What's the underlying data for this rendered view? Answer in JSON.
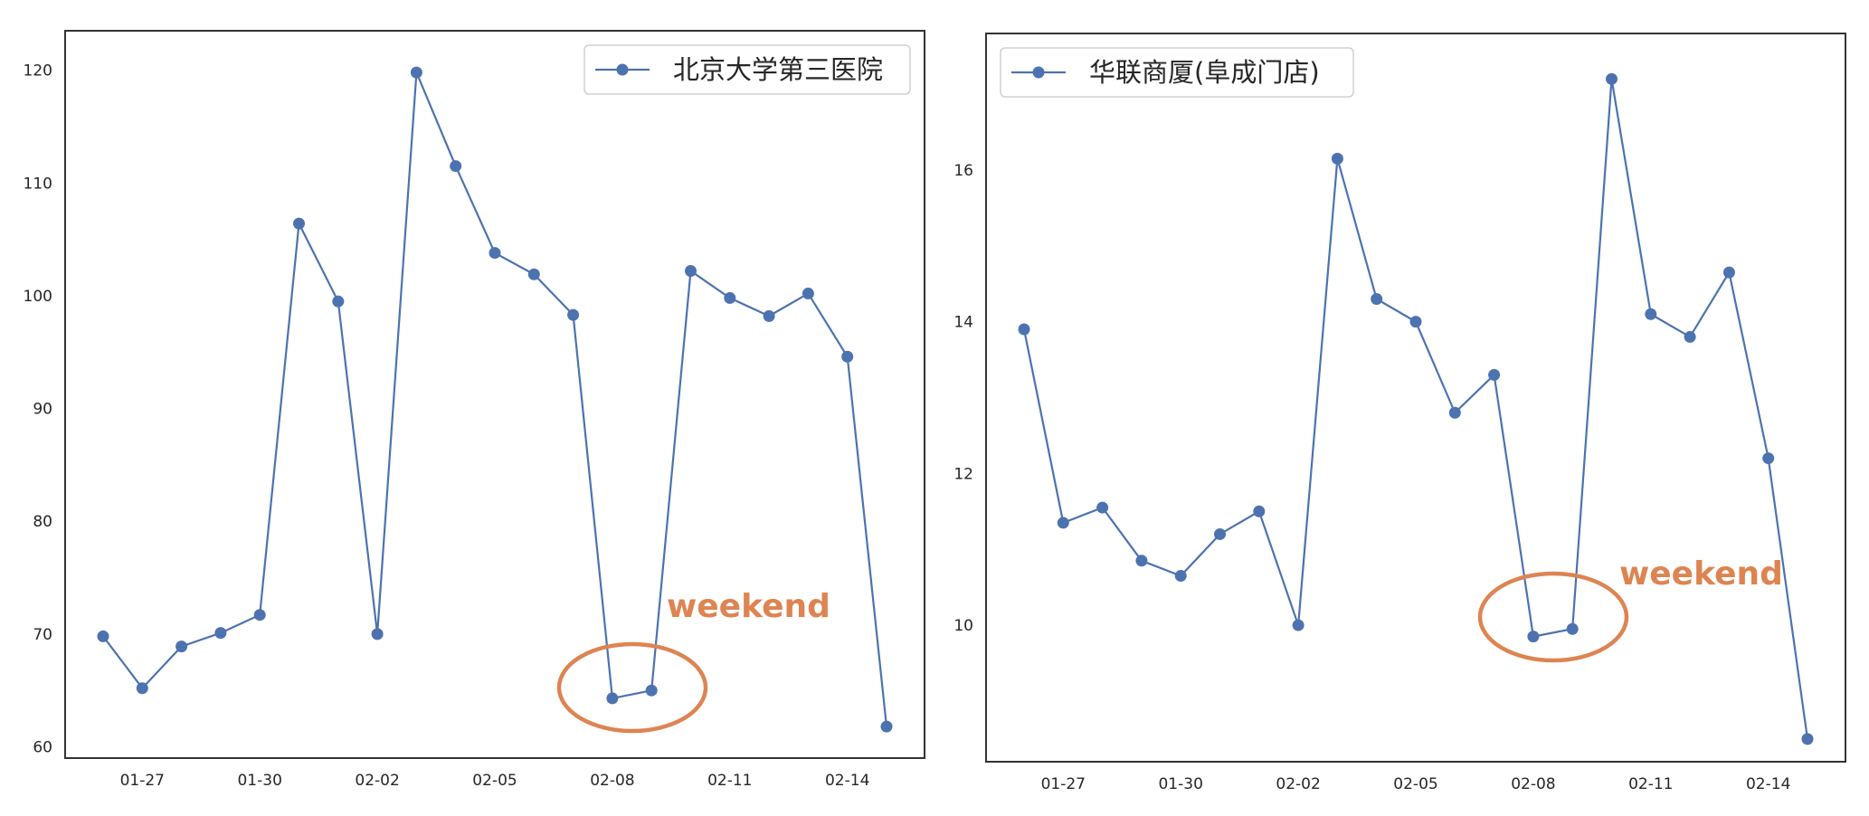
{
  "chart_data": [
    {
      "type": "line",
      "title": "",
      "xlabel": "",
      "ylabel": "",
      "x": [
        "01-26",
        "01-27",
        "01-28",
        "01-29",
        "01-30",
        "01-31",
        "02-01",
        "02-02",
        "02-03",
        "02-04",
        "02-05",
        "02-06",
        "02-07",
        "02-08",
        "02-09",
        "02-10",
        "02-11",
        "02-12",
        "02-13",
        "02-14",
        "02-15"
      ],
      "x_ticks": [
        "01-27",
        "01-30",
        "02-02",
        "02-05",
        "02-08",
        "02-11",
        "02-14"
      ],
      "y_ticks": [
        60,
        70,
        80,
        90,
        100,
        110,
        120
      ],
      "ylim": [
        59,
        123.5
      ],
      "xlim": [
        "01-25",
        "02-15"
      ],
      "grid": false,
      "legend_position": "top-right",
      "series": [
        {
          "name": "北京大学第三医院",
          "color": "#4c72b0",
          "values": [
            69.8,
            65.2,
            68.9,
            70.1,
            71.7,
            106.4,
            99.5,
            70.0,
            119.8,
            111.5,
            103.8,
            101.9,
            98.3,
            64.3,
            65.0,
            102.2,
            99.8,
            98.2,
            100.2,
            94.6,
            61.8
          ]
        }
      ],
      "annotations": [
        {
          "text": "weekend",
          "color": "#dd8452",
          "x_range": [
            "02-08",
            "02-09"
          ]
        }
      ]
    },
    {
      "type": "line",
      "title": "",
      "xlabel": "",
      "ylabel": "",
      "x": [
        "01-26",
        "01-27",
        "01-28",
        "01-29",
        "01-30",
        "01-31",
        "02-01",
        "02-02",
        "02-03",
        "02-04",
        "02-05",
        "02-06",
        "02-07",
        "02-08",
        "02-09",
        "02-10",
        "02-11",
        "02-12",
        "02-13",
        "02-14",
        "02-15"
      ],
      "x_ticks": [
        "01-27",
        "01-30",
        "02-02",
        "02-05",
        "02-08",
        "02-11",
        "02-14"
      ],
      "y_ticks": [
        10,
        12,
        14,
        16
      ],
      "ylim": [
        8.2,
        17.8
      ],
      "xlim": [
        "01-25",
        "02-15"
      ],
      "grid": false,
      "legend_position": "top-left",
      "series": [
        {
          "name": "华联商厦(阜成门店)",
          "color": "#4c72b0",
          "values": [
            13.9,
            11.35,
            11.55,
            10.85,
            10.65,
            11.2,
            11.5,
            10.0,
            16.15,
            14.3,
            14.0,
            12.8,
            13.3,
            9.85,
            9.95,
            17.2,
            14.1,
            13.8,
            14.65,
            12.2,
            8.5
          ]
        }
      ],
      "annotations": [
        {
          "text": "weekend",
          "color": "#dd8452",
          "x_range": [
            "02-08",
            "02-09"
          ]
        }
      ]
    }
  ]
}
